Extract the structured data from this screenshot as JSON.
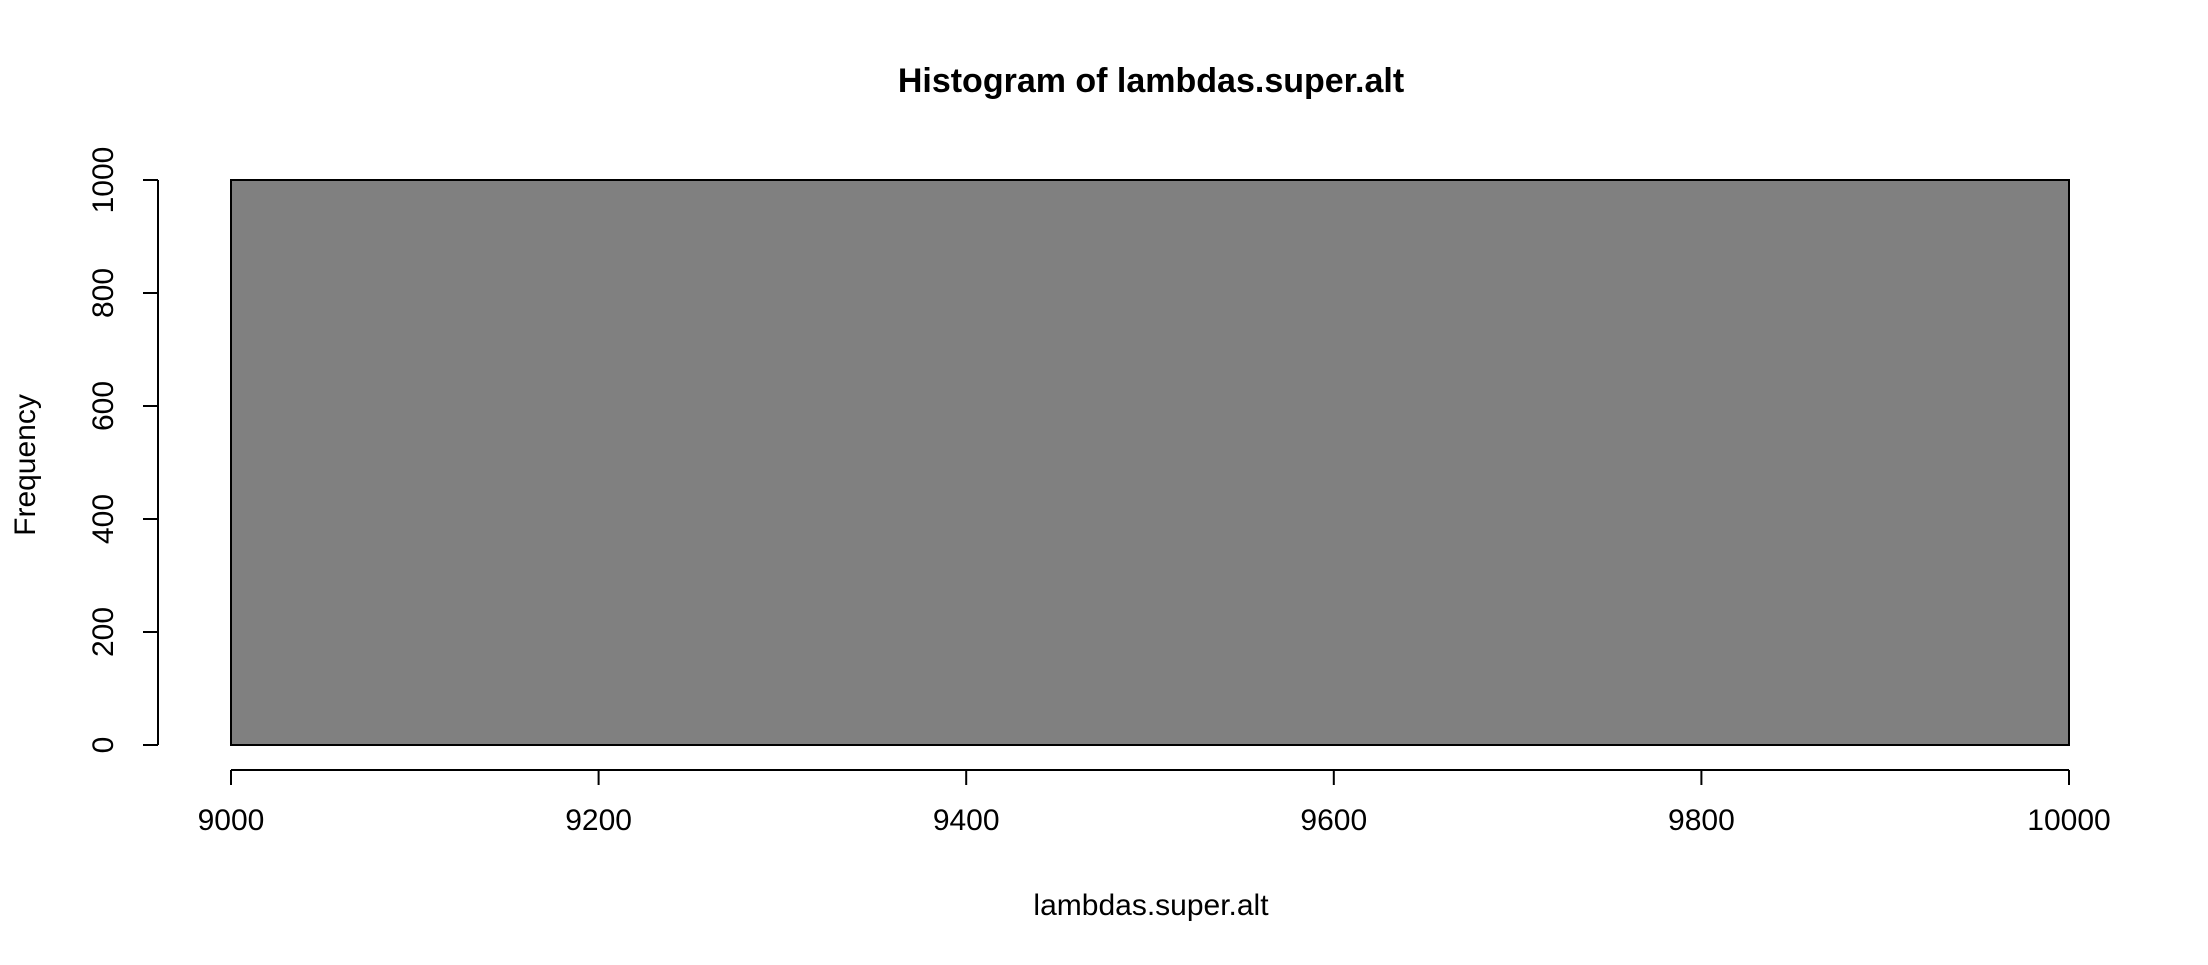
{
  "chart_data": {
    "type": "bar",
    "title": "Histogram of lambdas.super.alt",
    "xlabel": "lambdas.super.alt",
    "ylabel": "Frequency",
    "xlim": [
      9000,
      10000
    ],
    "ylim": [
      0,
      1000
    ],
    "x_ticks": [
      9000,
      9200,
      9400,
      9600,
      9800,
      10000
    ],
    "y_ticks": [
      0,
      200,
      400,
      600,
      800,
      1000
    ],
    "bins": [
      {
        "start": 9000,
        "end": 10000,
        "count": 1000
      }
    ],
    "bar_color": "#808080",
    "bar_border_color": "#000000",
    "grid": false,
    "legend": "none"
  }
}
